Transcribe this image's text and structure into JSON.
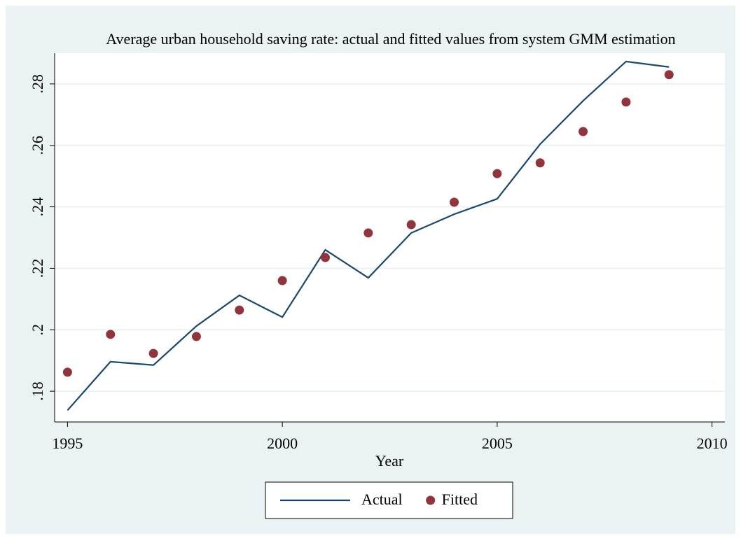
{
  "chart_data": {
    "type": "line-scatter",
    "title": "Average urban household saving rate: actual and fitted values from system GMM estimation",
    "x_label": "Year",
    "x": [
      1995,
      1996,
      1997,
      1998,
      1999,
      2000,
      2001,
      2002,
      2003,
      2004,
      2005,
      2006,
      2007,
      2008,
      2009
    ],
    "series": [
      {
        "name": "Actual",
        "color": "#1a476f",
        "mark": "line",
        "values": [
          0.1738,
          0.1896,
          0.1885,
          0.2012,
          0.2112,
          0.2041,
          0.226,
          0.2169,
          0.2315,
          0.2376,
          0.2426,
          0.2604,
          0.2745,
          0.2873,
          0.2855
        ]
      },
      {
        "name": "Fitted",
        "color": "#90353b",
        "mark": "dot",
        "values": [
          0.1862,
          0.1985,
          0.1923,
          0.1978,
          0.2064,
          0.216,
          0.2235,
          0.2315,
          0.2342,
          0.2415,
          0.2508,
          0.2543,
          0.2645,
          0.2741,
          0.283
        ]
      }
    ],
    "xlim": [
      1994.7,
      2010.3
    ],
    "xticks": [
      1995,
      2000,
      2005,
      2010
    ],
    "ylim": [
      0.17,
      0.29
    ],
    "yticks": [
      {
        "value": 0.18,
        "label": ".18"
      },
      {
        "value": 0.2,
        "label": ".2"
      },
      {
        "value": 0.22,
        "label": ".22"
      },
      {
        "value": 0.24,
        "label": ".24"
      },
      {
        "value": 0.26,
        "label": ".26"
      },
      {
        "value": 0.28,
        "label": ".28"
      }
    ],
    "grid": true,
    "legend": "bottom"
  }
}
